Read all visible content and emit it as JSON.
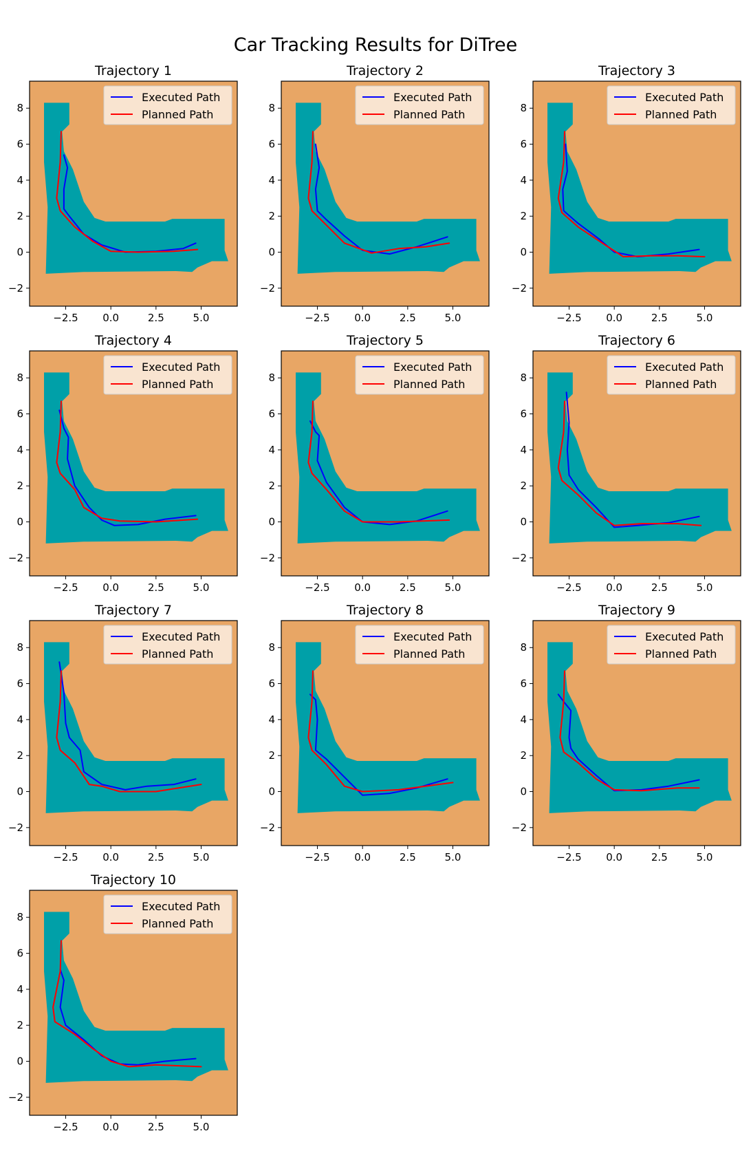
{
  "figure_title": "Car Tracking Results for DiTree",
  "colors": {
    "background": "#E8A665",
    "free_space": "#00A0A8",
    "executed": "#0000FF",
    "planned": "#FF0000",
    "legend_bg": "#FCEFE3"
  },
  "chart_data": [
    {
      "type": "line",
      "title": "Trajectory 1",
      "xlim": [
        -4.5,
        7
      ],
      "ylim": [
        -3,
        9.5
      ],
      "xticks": [
        "-2.5",
        "0.0",
        "2.5",
        "5.0"
      ],
      "yticks": [
        "-2",
        "0",
        "2",
        "4",
        "6",
        "8"
      ],
      "legend": [
        "Executed Path",
        "Planned Path"
      ],
      "legend_position": "top-right",
      "series": [
        {
          "name": "Executed Path",
          "x": [
            -2.6,
            -2.4,
            -2.6,
            -2.6,
            -2.3,
            -1.5,
            -0.5,
            0.8,
            2.5,
            4.0,
            4.7
          ],
          "y": [
            5.4,
            4.7,
            3.5,
            2.4,
            2.0,
            1.0,
            0.4,
            0.0,
            0.05,
            0.2,
            0.5
          ]
        },
        {
          "name": "Planned Path",
          "x": [
            -2.75,
            -2.8,
            -3.0,
            -2.8,
            -2.0,
            -1.0,
            0.0,
            1.5,
            3.5,
            4.8
          ],
          "y": [
            6.7,
            5.0,
            3.0,
            2.3,
            1.4,
            0.6,
            0.05,
            0.0,
            0.05,
            0.15
          ]
        }
      ]
    },
    {
      "type": "line",
      "title": "Trajectory 2",
      "xlim": [
        -4.5,
        7
      ],
      "ylim": [
        -3,
        9.5
      ],
      "xticks": [
        "-2.5",
        "0.0",
        "2.5",
        "5.0"
      ],
      "yticks": [
        "-2",
        "0",
        "2",
        "4",
        "6",
        "8"
      ],
      "legend": [
        "Executed Path",
        "Planned Path"
      ],
      "legend_position": "top-right",
      "series": [
        {
          "name": "Executed Path",
          "x": [
            -2.6,
            -2.4,
            -2.6,
            -2.5,
            -2.0,
            -1.0,
            0.0,
            1.5,
            3.0,
            4.7
          ],
          "y": [
            6.0,
            4.7,
            3.5,
            2.3,
            1.8,
            0.9,
            0.1,
            -0.1,
            0.3,
            0.85
          ]
        },
        {
          "name": "Planned Path",
          "x": [
            -2.75,
            -2.8,
            -3.0,
            -2.8,
            -2.0,
            -1.0,
            0.5,
            2.0,
            3.5,
            4.8
          ],
          "y": [
            6.7,
            5.0,
            3.0,
            2.3,
            1.5,
            0.5,
            -0.05,
            0.2,
            0.3,
            0.5
          ]
        }
      ]
    },
    {
      "type": "line",
      "title": "Trajectory 3",
      "xlim": [
        -4.5,
        7
      ],
      "ylim": [
        -3,
        9.5
      ],
      "xticks": [
        "-2.5",
        "0.0",
        "2.5",
        "5.0"
      ],
      "yticks": [
        "-2",
        "0",
        "2",
        "4",
        "6",
        "8"
      ],
      "legend": [
        "Executed Path",
        "Planned Path"
      ],
      "legend_position": "top-right",
      "series": [
        {
          "name": "Executed Path",
          "x": [
            -2.7,
            -2.6,
            -2.85,
            -2.8,
            -2.0,
            -0.8,
            0.0,
            1.3,
            3.0,
            4.7
          ],
          "y": [
            6.0,
            4.5,
            3.5,
            2.3,
            1.6,
            0.7,
            0.0,
            -0.25,
            -0.1,
            0.15
          ]
        },
        {
          "name": "Planned Path",
          "x": [
            -2.75,
            -2.8,
            -3.1,
            -2.9,
            -2.0,
            -0.5,
            0.5,
            2.0,
            3.5,
            5.0
          ],
          "y": [
            6.7,
            5.0,
            3.0,
            2.2,
            1.4,
            0.4,
            -0.25,
            -0.2,
            -0.2,
            -0.25
          ]
        }
      ]
    },
    {
      "type": "line",
      "title": "Trajectory 4",
      "xlim": [
        -4.5,
        7
      ],
      "ylim": [
        -3,
        9.5
      ],
      "xticks": [
        "-2.5",
        "0.0",
        "2.5",
        "5.0"
      ],
      "yticks": [
        "-2",
        "0",
        "2",
        "4",
        "6",
        "8"
      ],
      "legend": [
        "Executed Path",
        "Planned Path"
      ],
      "legend_position": "top-right",
      "series": [
        {
          "name": "Executed Path",
          "x": [
            -2.85,
            -2.6,
            -2.35,
            -2.4,
            -2.0,
            -1.2,
            -0.5,
            0.2,
            1.5,
            3.0,
            4.7
          ],
          "y": [
            6.2,
            5.2,
            4.7,
            3.5,
            2.0,
            0.8,
            0.1,
            -0.2,
            -0.15,
            0.15,
            0.35
          ]
        },
        {
          "name": "Planned Path",
          "x": [
            -2.75,
            -2.8,
            -3.0,
            -2.8,
            -2.0,
            -1.5,
            -0.5,
            0.5,
            2.5,
            4.8
          ],
          "y": [
            6.7,
            5.0,
            3.3,
            2.7,
            1.8,
            0.8,
            0.2,
            0.05,
            0.0,
            0.15
          ]
        }
      ]
    },
    {
      "type": "line",
      "title": "Trajectory 5",
      "xlim": [
        -4.5,
        7
      ],
      "ylim": [
        -3,
        9.5
      ],
      "xticks": [
        "-2.5",
        "0.0",
        "2.5",
        "5.0"
      ],
      "yticks": [
        "-2",
        "0",
        "2",
        "4",
        "6",
        "8"
      ],
      "legend": [
        "Executed Path",
        "Planned Path"
      ],
      "legend_position": "top-right",
      "series": [
        {
          "name": "Executed Path",
          "x": [
            -2.9,
            -2.6,
            -2.4,
            -2.5,
            -2.0,
            -1.0,
            0.0,
            1.5,
            3.0,
            4.7
          ],
          "y": [
            5.6,
            5.0,
            4.8,
            3.4,
            2.2,
            0.8,
            0.0,
            -0.15,
            0.05,
            0.6
          ]
        },
        {
          "name": "Planned Path",
          "x": [
            -2.75,
            -2.8,
            -3.0,
            -2.8,
            -2.0,
            -1.0,
            0.0,
            2.0,
            4.8
          ],
          "y": [
            6.7,
            5.0,
            3.3,
            2.7,
            1.8,
            0.6,
            0.0,
            0.0,
            0.1
          ]
        }
      ]
    },
    {
      "type": "line",
      "title": "Trajectory 6",
      "xlim": [
        -4.5,
        7
      ],
      "ylim": [
        -3,
        9.5
      ],
      "xticks": [
        "-2.5",
        "0.0",
        "2.5",
        "5.0"
      ],
      "yticks": [
        "-2",
        "0",
        "2",
        "4",
        "6",
        "8"
      ],
      "legend": [
        "Executed Path",
        "Planned Path"
      ],
      "legend_position": "top-right",
      "series": [
        {
          "name": "Executed Path",
          "x": [
            -2.65,
            -2.5,
            -2.6,
            -2.5,
            -2.0,
            -1.0,
            0.0,
            1.3,
            3.0,
            4.7
          ],
          "y": [
            7.2,
            5.5,
            4.0,
            2.6,
            1.8,
            0.8,
            -0.3,
            -0.2,
            -0.05,
            0.3
          ]
        },
        {
          "name": "Planned Path",
          "x": [
            -2.75,
            -2.8,
            -3.1,
            -2.9,
            -2.0,
            -1.0,
            0.0,
            1.5,
            3.5,
            4.8
          ],
          "y": [
            6.7,
            5.0,
            3.0,
            2.3,
            1.5,
            0.5,
            -0.2,
            -0.1,
            -0.1,
            -0.2
          ]
        }
      ]
    },
    {
      "type": "line",
      "title": "Trajectory 7",
      "xlim": [
        -4.5,
        7
      ],
      "ylim": [
        -3,
        9.5
      ],
      "xticks": [
        "-2.5",
        "0.0",
        "2.5",
        "5.0"
      ],
      "yticks": [
        "-2",
        "0",
        "2",
        "4",
        "6",
        "8"
      ],
      "legend": [
        "Executed Path",
        "Planned Path"
      ],
      "legend_position": "top-right",
      "series": [
        {
          "name": "Executed Path",
          "x": [
            -2.85,
            -2.6,
            -2.5,
            -2.3,
            -1.7,
            -1.5,
            -0.5,
            0.8,
            2.0,
            3.5,
            4.7
          ],
          "y": [
            7.2,
            5.5,
            3.8,
            3.0,
            2.3,
            1.1,
            0.4,
            0.1,
            0.3,
            0.4,
            0.7
          ]
        },
        {
          "name": "Planned Path",
          "x": [
            -2.75,
            -2.8,
            -3.0,
            -2.8,
            -2.0,
            -1.2,
            -0.5,
            0.5,
            2.5,
            5.0
          ],
          "y": [
            6.7,
            5.0,
            3.0,
            2.3,
            1.6,
            0.4,
            0.3,
            0.0,
            0.0,
            0.4
          ]
        }
      ]
    },
    {
      "type": "line",
      "title": "Trajectory 8",
      "xlim": [
        -4.5,
        7
      ],
      "ylim": [
        -3,
        9.5
      ],
      "xticks": [
        "-2.5",
        "0.0",
        "2.5",
        "5.0"
      ],
      "yticks": [
        "-2",
        "0",
        "2",
        "4",
        "6",
        "8"
      ],
      "legend": [
        "Executed Path",
        "Planned Path"
      ],
      "legend_position": "top-right",
      "series": [
        {
          "name": "Executed Path",
          "x": [
            -2.9,
            -2.6,
            -2.5,
            -2.6,
            -2.0,
            -1.0,
            0.0,
            1.5,
            3.0,
            4.7
          ],
          "y": [
            5.4,
            5.1,
            4.0,
            2.3,
            1.8,
            0.8,
            -0.2,
            -0.1,
            0.2,
            0.7
          ]
        },
        {
          "name": "Planned Path",
          "x": [
            -2.75,
            -2.8,
            -3.0,
            -2.8,
            -2.0,
            -1.0,
            0.0,
            2.0,
            5.0
          ],
          "y": [
            6.7,
            5.0,
            3.0,
            2.3,
            1.5,
            0.3,
            0.0,
            0.1,
            0.5
          ]
        }
      ]
    },
    {
      "type": "line",
      "title": "Trajectory 9",
      "xlim": [
        -4.5,
        7
      ],
      "ylim": [
        -3,
        9.5
      ],
      "xticks": [
        "-2.5",
        "0.0",
        "2.5",
        "5.0"
      ],
      "yticks": [
        "-2",
        "0",
        "2",
        "4",
        "6",
        "8"
      ],
      "legend": [
        "Executed Path",
        "Planned Path"
      ],
      "legend_position": "top-right",
      "series": [
        {
          "name": "Executed Path",
          "x": [
            -3.1,
            -2.8,
            -2.4,
            -2.5,
            -2.4,
            -2.0,
            -1.0,
            0.0,
            1.5,
            3.0,
            4.7
          ],
          "y": [
            5.4,
            5.0,
            4.5,
            3.0,
            2.4,
            1.8,
            0.9,
            0.05,
            0.1,
            0.3,
            0.65
          ]
        },
        {
          "name": "Planned Path",
          "x": [
            -2.75,
            -2.8,
            -3.0,
            -2.8,
            -2.0,
            -1.0,
            0.0,
            1.5,
            3.5,
            4.7
          ],
          "y": [
            6.7,
            5.0,
            3.0,
            2.2,
            1.6,
            0.7,
            0.1,
            0.05,
            0.2,
            0.2
          ]
        }
      ]
    },
    {
      "type": "line",
      "title": "Trajectory 10",
      "xlim": [
        -4.5,
        7
      ],
      "ylim": [
        -3,
        9.5
      ],
      "xticks": [
        "-2.5",
        "0.0",
        "2.5",
        "5.0"
      ],
      "yticks": [
        "-2",
        "0",
        "2",
        "4",
        "6",
        "8"
      ],
      "legend": [
        "Executed Path",
        "Planned Path"
      ],
      "legend_position": "top-right",
      "series": [
        {
          "name": "Executed Path",
          "x": [
            -2.8,
            -2.6,
            -2.8,
            -2.5,
            -1.5,
            -0.5,
            0.5,
            1.5,
            3.0,
            4.7
          ],
          "y": [
            5.1,
            4.5,
            3.0,
            2.0,
            1.2,
            0.3,
            -0.15,
            -0.2,
            0.0,
            0.15
          ]
        },
        {
          "name": "Planned Path",
          "x": [
            -2.75,
            -2.8,
            -3.2,
            -3.1,
            -2.0,
            -1.0,
            0.0,
            1.0,
            2.5,
            5.0
          ],
          "y": [
            6.7,
            5.0,
            3.0,
            2.2,
            1.5,
            0.7,
            0.0,
            -0.3,
            -0.2,
            -0.3
          ]
        }
      ]
    }
  ]
}
